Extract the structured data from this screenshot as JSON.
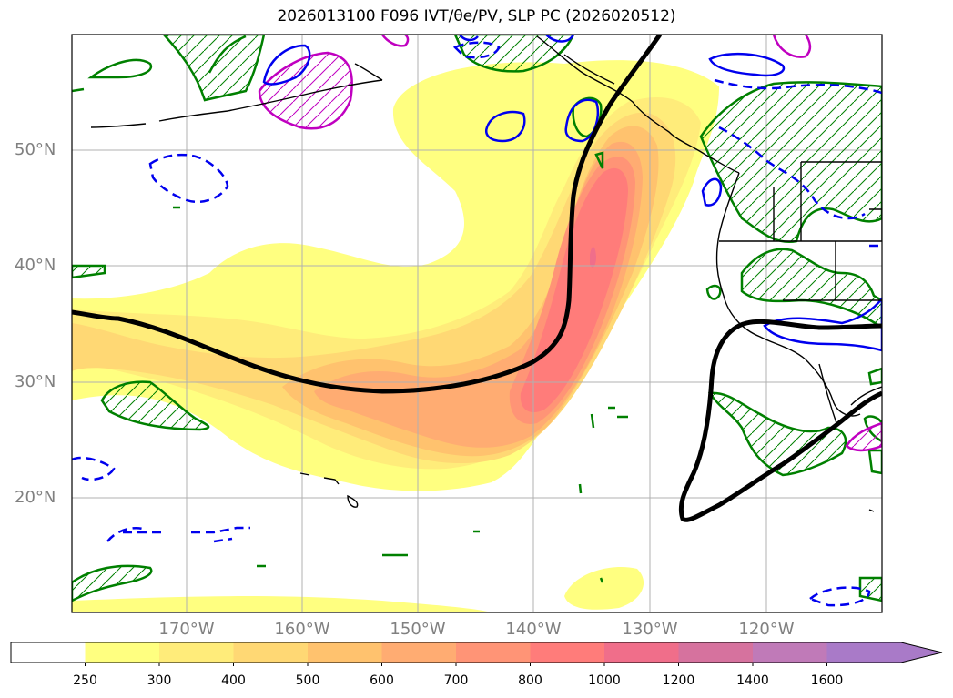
{
  "title": "2026013100 F096 IVT/θe/PV, SLP PC (2026020512)",
  "map": {
    "lat_labels": [
      "50°N",
      "40°N",
      "30°N",
      "20°N"
    ],
    "lon_labels": [
      "170°W",
      "160°W",
      "150°W",
      "140°W",
      "130°W",
      "120°W"
    ],
    "contour_colors": {
      "slp": "#000000",
      "theta_e": "#008000",
      "pv_positive": "#0000ff",
      "pv_negative": "#c000c0"
    }
  },
  "colorbar": {
    "levels": [
      "250",
      "300",
      "400",
      "500",
      "600",
      "700",
      "800",
      "1000",
      "1200",
      "1400",
      "1600"
    ],
    "colors": [
      "#ffff80",
      "#ffec7a",
      "#ffd874",
      "#ffc26e",
      "#ffac72",
      "#ff9476",
      "#ff7c7a",
      "#f06e8a",
      "#d6729e",
      "#c07ab8",
      "#a97ac8"
    ],
    "extend": "max"
  }
}
